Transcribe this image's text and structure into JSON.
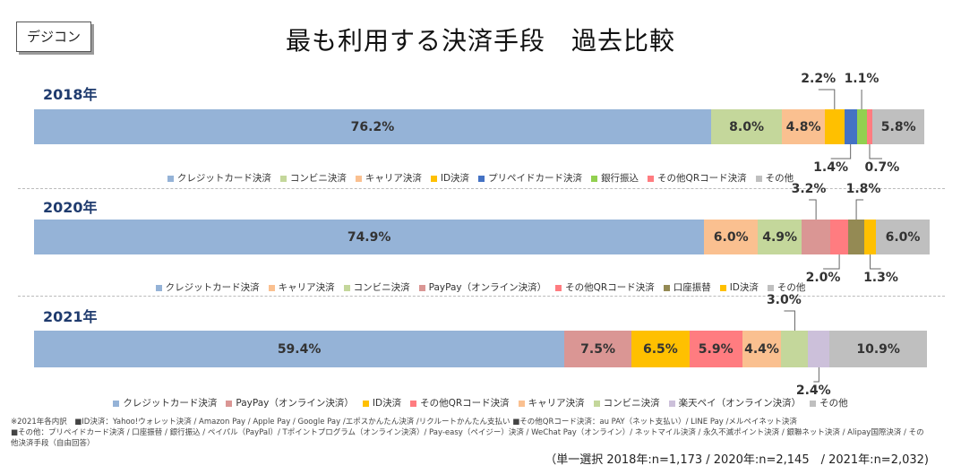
{
  "header": {
    "tag": "デジコン",
    "title": "最も利用する決済手段　過去比較"
  },
  "colors": {
    "credit": "#95b3d7",
    "conveni": "#c4d79b",
    "carrier": "#fac090",
    "id": "#ffc000",
    "prepaid": "#4472c4",
    "bank": "#92d050",
    "qr": "#ff7c80",
    "other": "#bfbfbf",
    "paypay": "#da9694",
    "koza": "#948a54",
    "rakuten": "#ccc0da"
  },
  "chart_data": {
    "type": "bar",
    "orientation": "horizontal-stacked-100",
    "title": "最も利用する決済手段　過去比較",
    "charts": [
      {
        "year": "2018年",
        "segments": [
          {
            "name": "クレジットカード決済",
            "value": 76.2,
            "label": "76.2%",
            "color_key": "credit"
          },
          {
            "name": "コンビニ決済",
            "value": 8.0,
            "label": "8.0%",
            "color_key": "conveni"
          },
          {
            "name": "キャリア決済",
            "value": 4.8,
            "label": "4.8%",
            "color_key": "carrier"
          },
          {
            "name": "ID決済",
            "value": 2.2,
            "label": "2.2%",
            "color_key": "id"
          },
          {
            "name": "プリペイドカード決済",
            "value": 1.4,
            "label": "1.4%",
            "color_key": "prepaid"
          },
          {
            "name": "銀行振込",
            "value": 1.1,
            "label": "1.1%",
            "color_key": "bank"
          },
          {
            "name": "その他QRコード決済",
            "value": 0.7,
            "label": "0.7%",
            "color_key": "qr"
          },
          {
            "name": "その他",
            "value": 5.8,
            "label": "5.8%",
            "color_key": "other"
          }
        ]
      },
      {
        "year": "2020年",
        "segments": [
          {
            "name": "クレジットカード決済",
            "value": 74.9,
            "label": "74.9%",
            "color_key": "credit"
          },
          {
            "name": "キャリア決済",
            "value": 6.0,
            "label": "6.0%",
            "color_key": "carrier"
          },
          {
            "name": "コンビニ決済",
            "value": 4.9,
            "label": "4.9%",
            "color_key": "conveni"
          },
          {
            "name": "PayPay（オンライン決済）",
            "value": 3.2,
            "label": "3.2%",
            "color_key": "paypay"
          },
          {
            "name": "その他QRコード決済",
            "value": 2.0,
            "label": "2.0%",
            "color_key": "qr"
          },
          {
            "name": "口座振替",
            "value": 1.8,
            "label": "1.8%",
            "color_key": "koza"
          },
          {
            "name": "ID決済",
            "value": 1.3,
            "label": "1.3%",
            "color_key": "id"
          },
          {
            "name": "その他",
            "value": 6.0,
            "label": "6.0%",
            "color_key": "other"
          }
        ]
      },
      {
        "year": "2021年",
        "segments": [
          {
            "name": "クレジットカード決済",
            "value": 59.4,
            "label": "59.4%",
            "color_key": "credit"
          },
          {
            "name": "PayPay（オンライン決済）",
            "value": 7.5,
            "label": "7.5%",
            "color_key": "paypay"
          },
          {
            "name": "ID決済",
            "value": 6.5,
            "label": "6.5%",
            "color_key": "id"
          },
          {
            "name": "その他QRコード決済",
            "value": 5.9,
            "label": "5.9%",
            "color_key": "qr"
          },
          {
            "name": "キャリア決済",
            "value": 4.4,
            "label": "4.4%",
            "color_key": "carrier"
          },
          {
            "name": "コンビニ決済",
            "value": 3.0,
            "label": "3.0%",
            "color_key": "conveni"
          },
          {
            "name": "楽天ペイ（オンライン決済）",
            "value": 2.4,
            "label": "2.4%",
            "color_key": "rakuten"
          },
          {
            "name": "その他",
            "value": 10.9,
            "label": "10.9%",
            "color_key": "other"
          }
        ]
      }
    ]
  },
  "notes": [
    "※2021年各内訳　■ID決済：Yahoo!ウォレット決済 / Amazon Pay / Apple Pay / Google Pay /エポスかんたん決済 /リクルートかんたん支払い ■その他QRコード決済：au PAY（ネット支払い）/ LINE Pay /メルペイネット決済",
    "■その他：プリペイドカード決済 / 口座振替 / 銀行振込 / ペイパル（PayPal）/ Tポイントプログラム（オンライン決済）/ Pay-easy（ペイジー）決済 / WeChat Pay（オンライン）/ ネットマイル決済 / 永久不滅ポイント決済 / 銀聯ネット決済 / Alipay国際決済 / その",
    "他決済手段（自由回答）"
  ],
  "footer": "（単一選択 2018年:n=1,173 / 2020年:n=2,145　/ 2021年:n=2,032)"
}
